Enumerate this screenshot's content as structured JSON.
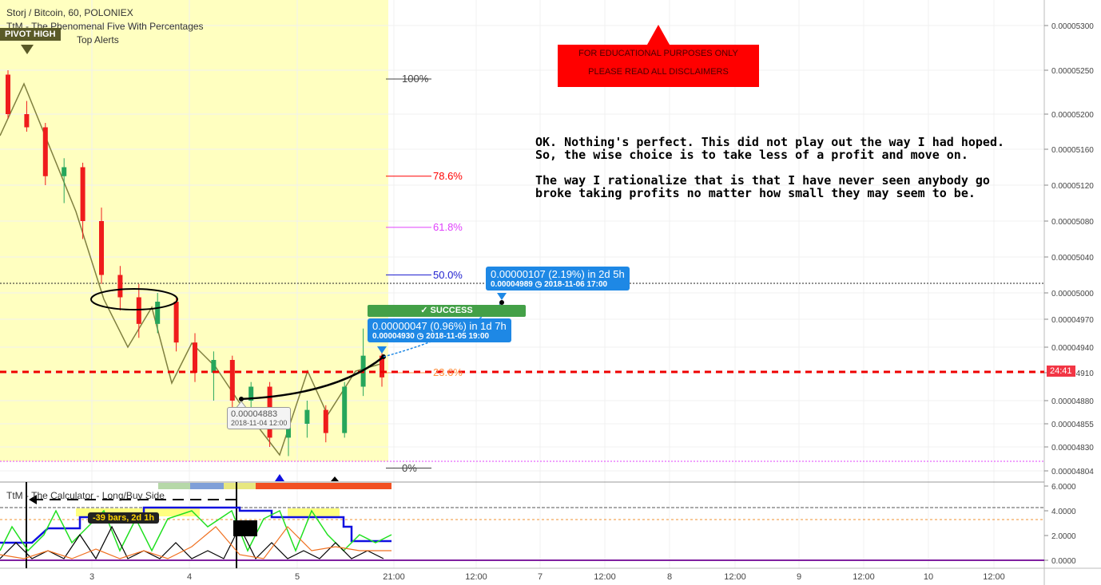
{
  "header": {
    "symbol_line": "Storj / Bitcoin, 60, POLONIEX",
    "indicator1": "TtM - The Phenomenal Five With Percentages",
    "indicator2": "Top Alerts"
  },
  "pivot_label": "PIVOT HIGH",
  "disclaimer": {
    "line1": "FOR EDUCATIONAL PURPOSES ONLY",
    "line2": "PLEASE READ ALL DISCLAIMERS"
  },
  "commentary": {
    "para1_line1": "OK. Nothing's perfect. This did not play out the way I had hoped.",
    "para1_line2": "So, the wise choice is to take less of a profit and move on.",
    "para2_line1": "The way I rationalize that is that I have never seen anybody go",
    "para2_line2": "broke taking profits no matter how small they may seem to be."
  },
  "target_box": {
    "main": "0.00000107 (2.19%) in 2d 5h",
    "sub": "0.00004989  ◷ 2018-11-06  17:00"
  },
  "actual_box": {
    "main": "0.00000047 (0.96%) in 1d 7h",
    "sub": "0.00004930  ◷ 2018-11-05  19:00"
  },
  "success_label": "✓ SUCCESS",
  "entry_tooltip": {
    "price": "0.00004883",
    "date": "2018-11-04 12:00"
  },
  "fib_levels": [
    {
      "label": "100%",
      "value": 5.24e-05,
      "color": "#444444"
    },
    {
      "label": "78.6%",
      "value": 5.13e-05,
      "color": "#ff0000"
    },
    {
      "label": "61.8%",
      "value": 5.073e-05,
      "color": "#e040fb"
    },
    {
      "label": "50.0%",
      "value": 5.02e-05,
      "color": "#2020d0"
    },
    {
      "label": "23.6%",
      "value": 4.91e-05,
      "color": "#ff9040"
    },
    {
      "label": "0%",
      "value": 4.807e-05,
      "color": "#444444"
    }
  ],
  "countdown": "24:41",
  "calculator": {
    "label": "TtM - The Calculator - Long/Buy Side",
    "bars_badge": "-39 bars, 2d 1h",
    "y_ticks": [
      "6.0000",
      "4.0000",
      "2.0000",
      "0.0000"
    ]
  },
  "colors": {
    "bull": "#26a65b",
    "bear": "#ef1c1c",
    "highlight": "#ffffc0",
    "price_line": "#ee0000"
  },
  "chart_data": {
    "type": "candlestick",
    "title": "Storj / Bitcoin, 60, POLONIEX",
    "y_ticks": [
      "0.00005300",
      "0.00005250",
      "0.00005200",
      "0.00005160",
      "0.00005120",
      "0.00005080",
      "0.00005040",
      "0.00005000",
      "0.00004970",
      "0.00004940",
      "0.00004910",
      "0.00004880",
      "0.00004855",
      "0.00004830",
      "0.00004804"
    ],
    "x_ticks": [
      "3",
      "4",
      "5",
      "21:00",
      "12:00",
      "7",
      "12:00",
      "8",
      "12:00",
      "9",
      "12:00",
      "10",
      "12:00"
    ],
    "current_price": 4.912e-05,
    "ohlc": [
      [
        5.245e-05,
        5.25e-05,
        5.195e-05,
        5.2e-05
      ],
      [
        5.2e-05,
        5.215e-05,
        5.18e-05,
        5.185e-05
      ],
      [
        5.185e-05,
        5.19e-05,
        5.12e-05,
        5.13e-05
      ],
      [
        5.13e-05,
        5.15e-05,
        5.1e-05,
        5.14e-05
      ],
      [
        5.14e-05,
        5.145e-05,
        5.06e-05,
        5.08e-05
      ],
      [
        5.08e-05,
        5.095e-05,
        5.01e-05,
        5.02e-05
      ],
      [
        5.02e-05,
        5.03e-05,
        4.98e-05,
        4.995e-05
      ],
      [
        4.995e-05,
        5.01e-05,
        4.95e-05,
        4.965e-05
      ],
      [
        4.965e-05,
        5e-05,
        4.955e-05,
        4.99e-05
      ],
      [
        4.99e-05,
        4.995e-05,
        4.935e-05,
        4.945e-05
      ],
      [
        4.945e-05,
        4.955e-05,
        4.9e-05,
        4.91e-05
      ],
      [
        4.91e-05,
        4.935e-05,
        4.88e-05,
        4.925e-05
      ],
      [
        4.925e-05,
        4.93e-05,
        4.87e-05,
        4.88e-05
      ],
      [
        4.88e-05,
        4.9e-05,
        4.87e-05,
        4.895e-05
      ],
      [
        4.895e-05,
        4.9e-05,
        4.83e-05,
        4.84e-05
      ],
      [
        4.84e-05,
        4.86e-05,
        4.82e-05,
        4.855e-05
      ],
      [
        4.855e-05,
        4.88e-05,
        4.84e-05,
        4.87e-05
      ],
      [
        4.87e-05,
        4.875e-05,
        4.835e-05,
        4.845e-05
      ],
      [
        4.845e-05,
        4.9e-05,
        4.84e-05,
        4.895e-05
      ],
      [
        4.895e-05,
        4.96e-05,
        4.885e-05,
        4.93e-05
      ],
      [
        4.93e-05,
        4.935e-05,
        4.895e-05,
        4.905e-05
      ]
    ],
    "x_range": [
      "2018-11-02",
      "2018-11-10"
    ],
    "ylim": [
      4.795e-05,
      5.32e-05
    ]
  }
}
